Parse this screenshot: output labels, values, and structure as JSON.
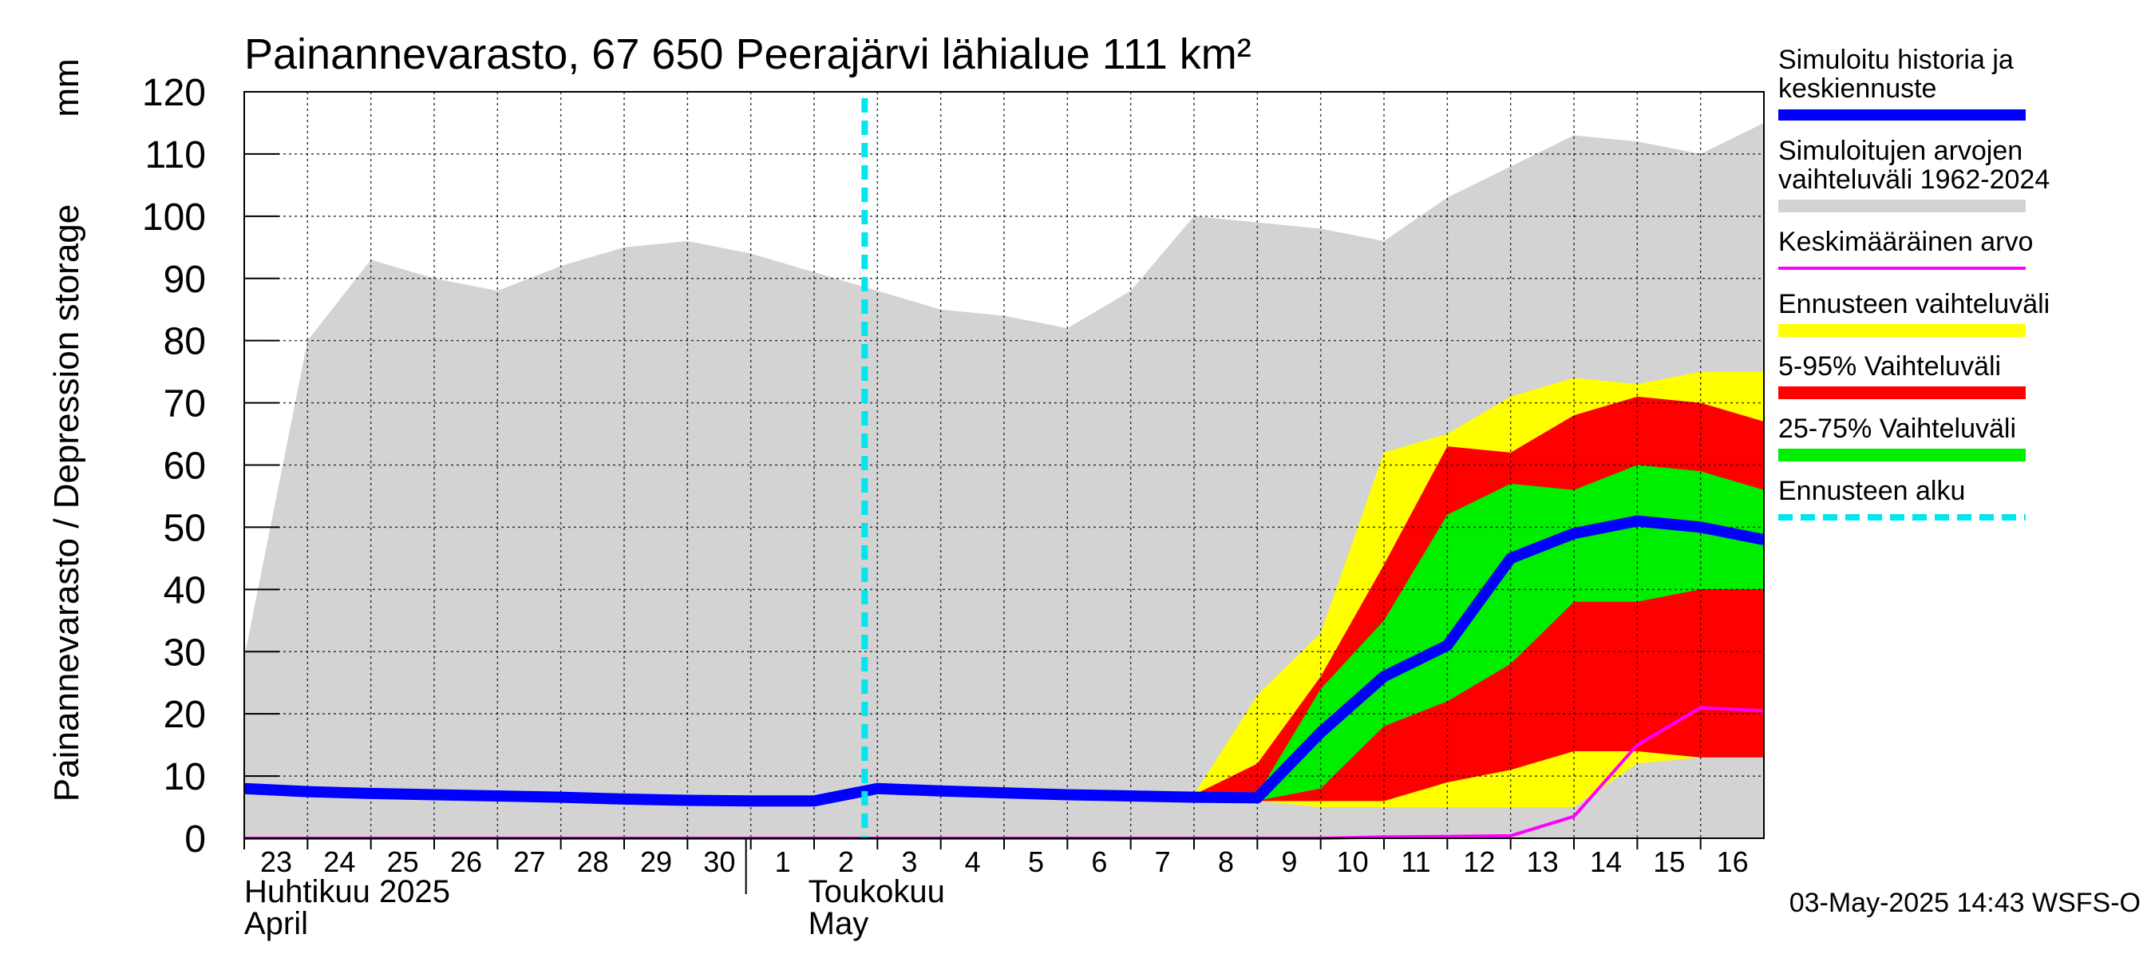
{
  "chart_data": {
    "type": "area",
    "title": "Painannevarasto, 67 650 Peerajärvi lähialue 111 km²",
    "ylabel": "Painannevarasto / Depression storage",
    "yunit": "mm",
    "ylim": [
      0,
      120
    ],
    "yticks": [
      0,
      10,
      20,
      30,
      40,
      50,
      60,
      70,
      80,
      90,
      100,
      110,
      120
    ],
    "grid": true,
    "legend_placement": "right",
    "x_start_date": "2025-04-23",
    "x_end_date": "2025-05-17",
    "x_ticks": [
      {
        "date": "2025-04-23",
        "label": "23"
      },
      {
        "date": "2025-04-24",
        "label": "24"
      },
      {
        "date": "2025-04-25",
        "label": "25"
      },
      {
        "date": "2025-04-26",
        "label": "26"
      },
      {
        "date": "2025-04-27",
        "label": "27"
      },
      {
        "date": "2025-04-28",
        "label": "28"
      },
      {
        "date": "2025-04-29",
        "label": "29"
      },
      {
        "date": "2025-04-30",
        "label": "30"
      },
      {
        "date": "2025-05-01",
        "label": "1"
      },
      {
        "date": "2025-05-02",
        "label": "2"
      },
      {
        "date": "2025-05-03",
        "label": "3"
      },
      {
        "date": "2025-05-04",
        "label": "4"
      },
      {
        "date": "2025-05-05",
        "label": "5"
      },
      {
        "date": "2025-05-06",
        "label": "6"
      },
      {
        "date": "2025-05-07",
        "label": "7"
      },
      {
        "date": "2025-05-08",
        "label": "8"
      },
      {
        "date": "2025-05-09",
        "label": "9"
      },
      {
        "date": "2025-05-10",
        "label": "10"
      },
      {
        "date": "2025-05-11",
        "label": "11"
      },
      {
        "date": "2025-05-12",
        "label": "12"
      },
      {
        "date": "2025-05-13",
        "label": "13"
      },
      {
        "date": "2025-05-14",
        "label": "14"
      },
      {
        "date": "2025-05-15",
        "label": "15"
      },
      {
        "date": "2025-05-16",
        "label": "16"
      }
    ],
    "month_labels": [
      {
        "date": "2025-04-23",
        "line1": "Huhtikuu  2025",
        "line2": "April"
      },
      {
        "date": "2025-05-01",
        "line1": "Toukokuu",
        "line2": "May"
      }
    ],
    "month_boundary": "2025-05-01",
    "forecast_start": "2025-05-03",
    "historical_range": {
      "dates": [
        "2025-04-23",
        "2025-04-24",
        "2025-04-25",
        "2025-04-26",
        "2025-04-27",
        "2025-04-28",
        "2025-04-29",
        "2025-04-30",
        "2025-05-01",
        "2025-05-02",
        "2025-05-03",
        "2025-05-04",
        "2025-05-05",
        "2025-05-06",
        "2025-05-07",
        "2025-05-08",
        "2025-05-09",
        "2025-05-10",
        "2025-05-11",
        "2025-05-12",
        "2025-05-13",
        "2025-05-14",
        "2025-05-15",
        "2025-05-16",
        "2025-05-17"
      ],
      "upper": [
        29,
        80,
        93,
        90,
        88,
        92,
        95,
        96,
        94,
        91,
        88,
        85,
        84,
        82,
        88,
        100,
        99,
        98,
        96,
        103,
        108,
        113,
        112,
        110,
        115
      ],
      "lower": [
        0,
        0,
        0,
        0,
        0,
        0,
        0,
        0,
        0,
        0,
        0,
        0,
        0,
        0,
        0,
        0,
        0,
        0,
        0,
        0,
        0,
        0,
        0,
        0,
        0
      ]
    },
    "forecast_bands": [
      {
        "name": "Ennusteen vaihteluväli",
        "color": "#ffff00",
        "dates": [
          "2025-05-08",
          "2025-05-09",
          "2025-05-10",
          "2025-05-11",
          "2025-05-12",
          "2025-05-13",
          "2025-05-14",
          "2025-05-15",
          "2025-05-16",
          "2025-05-17"
        ],
        "upper": [
          7,
          23,
          33,
          62,
          65,
          71,
          74,
          73,
          75,
          75
        ],
        "lower": [
          6,
          6,
          5,
          5,
          5,
          5,
          5,
          12,
          13,
          13
        ]
      },
      {
        "name": "5-95% Vaihteluväli",
        "color": "#ff0000",
        "dates": [
          "2025-05-08",
          "2025-05-09",
          "2025-05-10",
          "2025-05-11",
          "2025-05-12",
          "2025-05-13",
          "2025-05-14",
          "2025-05-15",
          "2025-05-16",
          "2025-05-17"
        ],
        "upper": [
          7,
          12,
          26,
          44,
          63,
          62,
          68,
          71,
          70,
          67
        ],
        "lower": [
          6,
          6,
          6,
          6,
          9,
          11,
          14,
          14,
          13,
          13
        ]
      },
      {
        "name": "25-75% Vaihteluväli",
        "color": "#00ee00",
        "dates": [
          "2025-05-08",
          "2025-05-09",
          "2025-05-10",
          "2025-05-11",
          "2025-05-12",
          "2025-05-13",
          "2025-05-14",
          "2025-05-15",
          "2025-05-16",
          "2025-05-17"
        ],
        "upper": [
          7,
          7,
          24,
          35,
          52,
          57,
          56,
          60,
          59,
          56
        ],
        "lower": [
          6,
          6,
          8,
          18,
          22,
          28,
          38,
          38,
          40,
          40
        ]
      },
      {
        "name": "5-95% Vaihteluväli",
        "color": "#ff0000",
        "dates": [
          "2025-05-08",
          "2025-05-09",
          "2025-05-10",
          "2025-05-11",
          "2025-05-12",
          "2025-05-13",
          "2025-05-14",
          "2025-05-15",
          "2025-05-16",
          "2025-05-17"
        ],
        "upper": [
          6,
          6,
          8,
          18,
          22,
          28,
          38,
          38,
          40,
          40
        ],
        "lower": [
          6,
          6,
          6,
          6,
          9,
          11,
          14,
          14,
          13,
          20
        ]
      }
    ],
    "series": [
      {
        "name": "Keskimääräinen arvo",
        "color": "#ff00ff",
        "dates": [
          "2025-04-23",
          "2025-05-09",
          "2025-05-10",
          "2025-05-11",
          "2025-05-12",
          "2025-05-13",
          "2025-05-14",
          "2025-05-15",
          "2025-05-16",
          "2025-05-17"
        ],
        "values": [
          0,
          0,
          0,
          0.2,
          0.3,
          0.4,
          3.5,
          15,
          21,
          20.5
        ]
      },
      {
        "name": "Simuloitu historia ja keskiennuste",
        "color": "#0000ff",
        "dates": [
          "2025-04-23",
          "2025-04-24",
          "2025-04-25",
          "2025-04-26",
          "2025-04-27",
          "2025-04-28",
          "2025-04-29",
          "2025-04-30",
          "2025-05-01",
          "2025-05-02",
          "2025-05-03",
          "2025-05-04",
          "2025-05-05",
          "2025-05-06",
          "2025-05-07",
          "2025-05-08",
          "2025-05-09",
          "2025-05-10",
          "2025-05-11",
          "2025-05-12",
          "2025-05-13",
          "2025-05-14",
          "2025-05-15",
          "2025-05-16",
          "2025-05-17"
        ],
        "values": [
          8,
          7.5,
          7.2,
          7,
          6.8,
          6.6,
          6.3,
          6.1,
          6,
          6,
          8,
          7.6,
          7.3,
          7,
          6.8,
          6.6,
          6.5,
          17,
          26,
          31,
          45,
          49,
          51,
          50,
          48
        ]
      }
    ],
    "legend": [
      {
        "label": "Simuloitu historia ja keskiennuste",
        "lines": [
          "Simuloitu historia ja",
          "keskiennuste"
        ],
        "color": "#0000ff",
        "style": "thick"
      },
      {
        "label": "Simuloitujen arvojen vaihteluväli 1962-2024",
        "lines": [
          "Simuloitujen arvojen",
          "vaihteluväli 1962-2024"
        ],
        "color": "#d3d3d3",
        "style": "band"
      },
      {
        "label": "Keskimääräinen arvo",
        "lines": [
          "Keskimääräinen arvo"
        ],
        "color": "#ff00ff",
        "style": "thin"
      },
      {
        "label": "Ennusteen vaihteluväli",
        "lines": [
          "Ennusteen vaihteluväli"
        ],
        "color": "#ffff00",
        "style": "band"
      },
      {
        "label": "5-95% Vaihteluväli",
        "lines": [
          "5-95% Vaihteluväli"
        ],
        "color": "#ff0000",
        "style": "band"
      },
      {
        "label": "25-75% Vaihteluväli",
        "lines": [
          "25-75% Vaihteluväli"
        ],
        "color": "#00ee00",
        "style": "band"
      },
      {
        "label": "Ennusteen alku",
        "lines": [
          "Ennusteen alku"
        ],
        "color": "#00e5ee",
        "style": "dashed"
      }
    ],
    "footer": "03-May-2025 14:43 WSFS-O"
  }
}
